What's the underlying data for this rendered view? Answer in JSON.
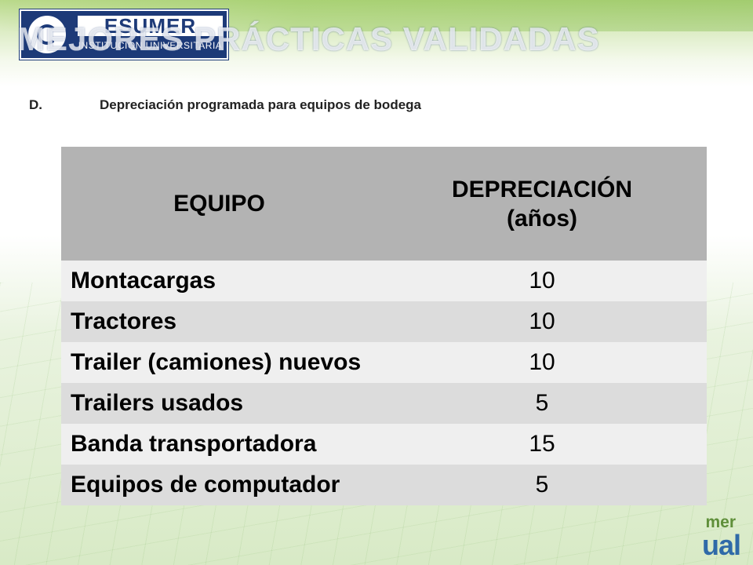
{
  "logo": {
    "name": "ESUMER",
    "subtitle": "INSTITUCIÓN UNIVERSITARIA"
  },
  "slide": {
    "title": "MEJORES PRÁCTICAS VALIDADAS"
  },
  "section": {
    "letter": "D.",
    "heading": "Depreciación programada para equipos de bodega"
  },
  "table": {
    "headers": {
      "equipment": "EQUIPO",
      "depreciation": "DEPRECIACIÓN",
      "unit": "(años)"
    },
    "rows": [
      {
        "equipment": "Montacargas",
        "years": "10"
      },
      {
        "equipment": "Tractores",
        "years": "10"
      },
      {
        "equipment": "Trailer (camiones) nuevos",
        "years": "10"
      },
      {
        "equipment": "Trailers usados",
        "years": "5"
      },
      {
        "equipment": "Banda transportadora",
        "years": "15"
      },
      {
        "equipment": "Equipos de computador",
        "years": "5"
      }
    ]
  },
  "brand": {
    "mer": "mer",
    "ual": "ual"
  },
  "colors": {
    "header_bg": "#b3b3b3",
    "row_light": "#efefef",
    "row_dark": "#dcdcdc",
    "logo_blue": "#1d3a78",
    "top_green": "#b9d98a"
  }
}
